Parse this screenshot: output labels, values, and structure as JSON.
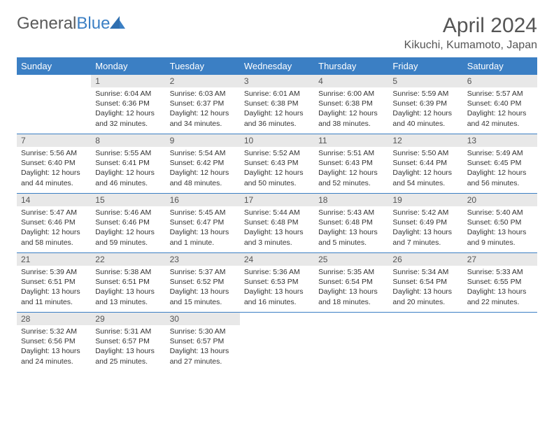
{
  "logo": {
    "part1": "General",
    "part2": "Blue"
  },
  "title": "April 2024",
  "location": "Kikuchi, Kumamoto, Japan",
  "colors": {
    "header_bg": "#3b7fc4",
    "header_text": "#ffffff",
    "daynum_bg": "#e8e8e8",
    "row_border": "#3b7fc4",
    "body_text": "#333333",
    "title_text": "#555555"
  },
  "days_of_week": [
    "Sunday",
    "Monday",
    "Tuesday",
    "Wednesday",
    "Thursday",
    "Friday",
    "Saturday"
  ],
  "weeks": [
    [
      null,
      {
        "n": "1",
        "sunrise": "6:04 AM",
        "sunset": "6:36 PM",
        "daylight": "12 hours and 32 minutes."
      },
      {
        "n": "2",
        "sunrise": "6:03 AM",
        "sunset": "6:37 PM",
        "daylight": "12 hours and 34 minutes."
      },
      {
        "n": "3",
        "sunrise": "6:01 AM",
        "sunset": "6:38 PM",
        "daylight": "12 hours and 36 minutes."
      },
      {
        "n": "4",
        "sunrise": "6:00 AM",
        "sunset": "6:38 PM",
        "daylight": "12 hours and 38 minutes."
      },
      {
        "n": "5",
        "sunrise": "5:59 AM",
        "sunset": "6:39 PM",
        "daylight": "12 hours and 40 minutes."
      },
      {
        "n": "6",
        "sunrise": "5:57 AM",
        "sunset": "6:40 PM",
        "daylight": "12 hours and 42 minutes."
      }
    ],
    [
      {
        "n": "7",
        "sunrise": "5:56 AM",
        "sunset": "6:40 PM",
        "daylight": "12 hours and 44 minutes."
      },
      {
        "n": "8",
        "sunrise": "5:55 AM",
        "sunset": "6:41 PM",
        "daylight": "12 hours and 46 minutes."
      },
      {
        "n": "9",
        "sunrise": "5:54 AM",
        "sunset": "6:42 PM",
        "daylight": "12 hours and 48 minutes."
      },
      {
        "n": "10",
        "sunrise": "5:52 AM",
        "sunset": "6:43 PM",
        "daylight": "12 hours and 50 minutes."
      },
      {
        "n": "11",
        "sunrise": "5:51 AM",
        "sunset": "6:43 PM",
        "daylight": "12 hours and 52 minutes."
      },
      {
        "n": "12",
        "sunrise": "5:50 AM",
        "sunset": "6:44 PM",
        "daylight": "12 hours and 54 minutes."
      },
      {
        "n": "13",
        "sunrise": "5:49 AM",
        "sunset": "6:45 PM",
        "daylight": "12 hours and 56 minutes."
      }
    ],
    [
      {
        "n": "14",
        "sunrise": "5:47 AM",
        "sunset": "6:46 PM",
        "daylight": "12 hours and 58 minutes."
      },
      {
        "n": "15",
        "sunrise": "5:46 AM",
        "sunset": "6:46 PM",
        "daylight": "12 hours and 59 minutes."
      },
      {
        "n": "16",
        "sunrise": "5:45 AM",
        "sunset": "6:47 PM",
        "daylight": "13 hours and 1 minute."
      },
      {
        "n": "17",
        "sunrise": "5:44 AM",
        "sunset": "6:48 PM",
        "daylight": "13 hours and 3 minutes."
      },
      {
        "n": "18",
        "sunrise": "5:43 AM",
        "sunset": "6:48 PM",
        "daylight": "13 hours and 5 minutes."
      },
      {
        "n": "19",
        "sunrise": "5:42 AM",
        "sunset": "6:49 PM",
        "daylight": "13 hours and 7 minutes."
      },
      {
        "n": "20",
        "sunrise": "5:40 AM",
        "sunset": "6:50 PM",
        "daylight": "13 hours and 9 minutes."
      }
    ],
    [
      {
        "n": "21",
        "sunrise": "5:39 AM",
        "sunset": "6:51 PM",
        "daylight": "13 hours and 11 minutes."
      },
      {
        "n": "22",
        "sunrise": "5:38 AM",
        "sunset": "6:51 PM",
        "daylight": "13 hours and 13 minutes."
      },
      {
        "n": "23",
        "sunrise": "5:37 AM",
        "sunset": "6:52 PM",
        "daylight": "13 hours and 15 minutes."
      },
      {
        "n": "24",
        "sunrise": "5:36 AM",
        "sunset": "6:53 PM",
        "daylight": "13 hours and 16 minutes."
      },
      {
        "n": "25",
        "sunrise": "5:35 AM",
        "sunset": "6:54 PM",
        "daylight": "13 hours and 18 minutes."
      },
      {
        "n": "26",
        "sunrise": "5:34 AM",
        "sunset": "6:54 PM",
        "daylight": "13 hours and 20 minutes."
      },
      {
        "n": "27",
        "sunrise": "5:33 AM",
        "sunset": "6:55 PM",
        "daylight": "13 hours and 22 minutes."
      }
    ],
    [
      {
        "n": "28",
        "sunrise": "5:32 AM",
        "sunset": "6:56 PM",
        "daylight": "13 hours and 24 minutes."
      },
      {
        "n": "29",
        "sunrise": "5:31 AM",
        "sunset": "6:57 PM",
        "daylight": "13 hours and 25 minutes."
      },
      {
        "n": "30",
        "sunrise": "5:30 AM",
        "sunset": "6:57 PM",
        "daylight": "13 hours and 27 minutes."
      },
      null,
      null,
      null,
      null
    ]
  ]
}
